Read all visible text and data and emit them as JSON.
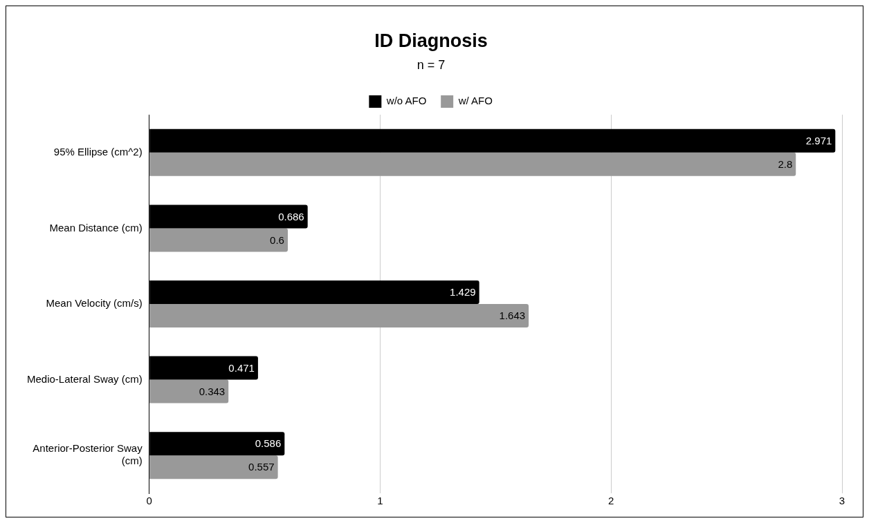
{
  "chart_data": {
    "type": "bar",
    "orientation": "horizontal",
    "title": "ID Diagnosis",
    "subtitle": "n = 7",
    "categories": [
      "95% Ellipse (cm^2)",
      "Mean Distance (cm)",
      "Mean Velocity (cm/s)",
      "Medio-Lateral Sway (cm)",
      "Anterior-Posterior Sway (cm)"
    ],
    "series": [
      {
        "name": "w/o AFO",
        "color": "#000000",
        "values": [
          2.971,
          0.686,
          1.429,
          0.471,
          0.586
        ]
      },
      {
        "name": "w/ AFO",
        "color": "#999999",
        "values": [
          2.8,
          0.6,
          1.643,
          0.343,
          0.557
        ]
      }
    ],
    "xlim": [
      0,
      3
    ],
    "xticks": [
      0,
      1,
      2,
      3
    ],
    "grid": "x",
    "legend": "top",
    "data_labels": true
  }
}
